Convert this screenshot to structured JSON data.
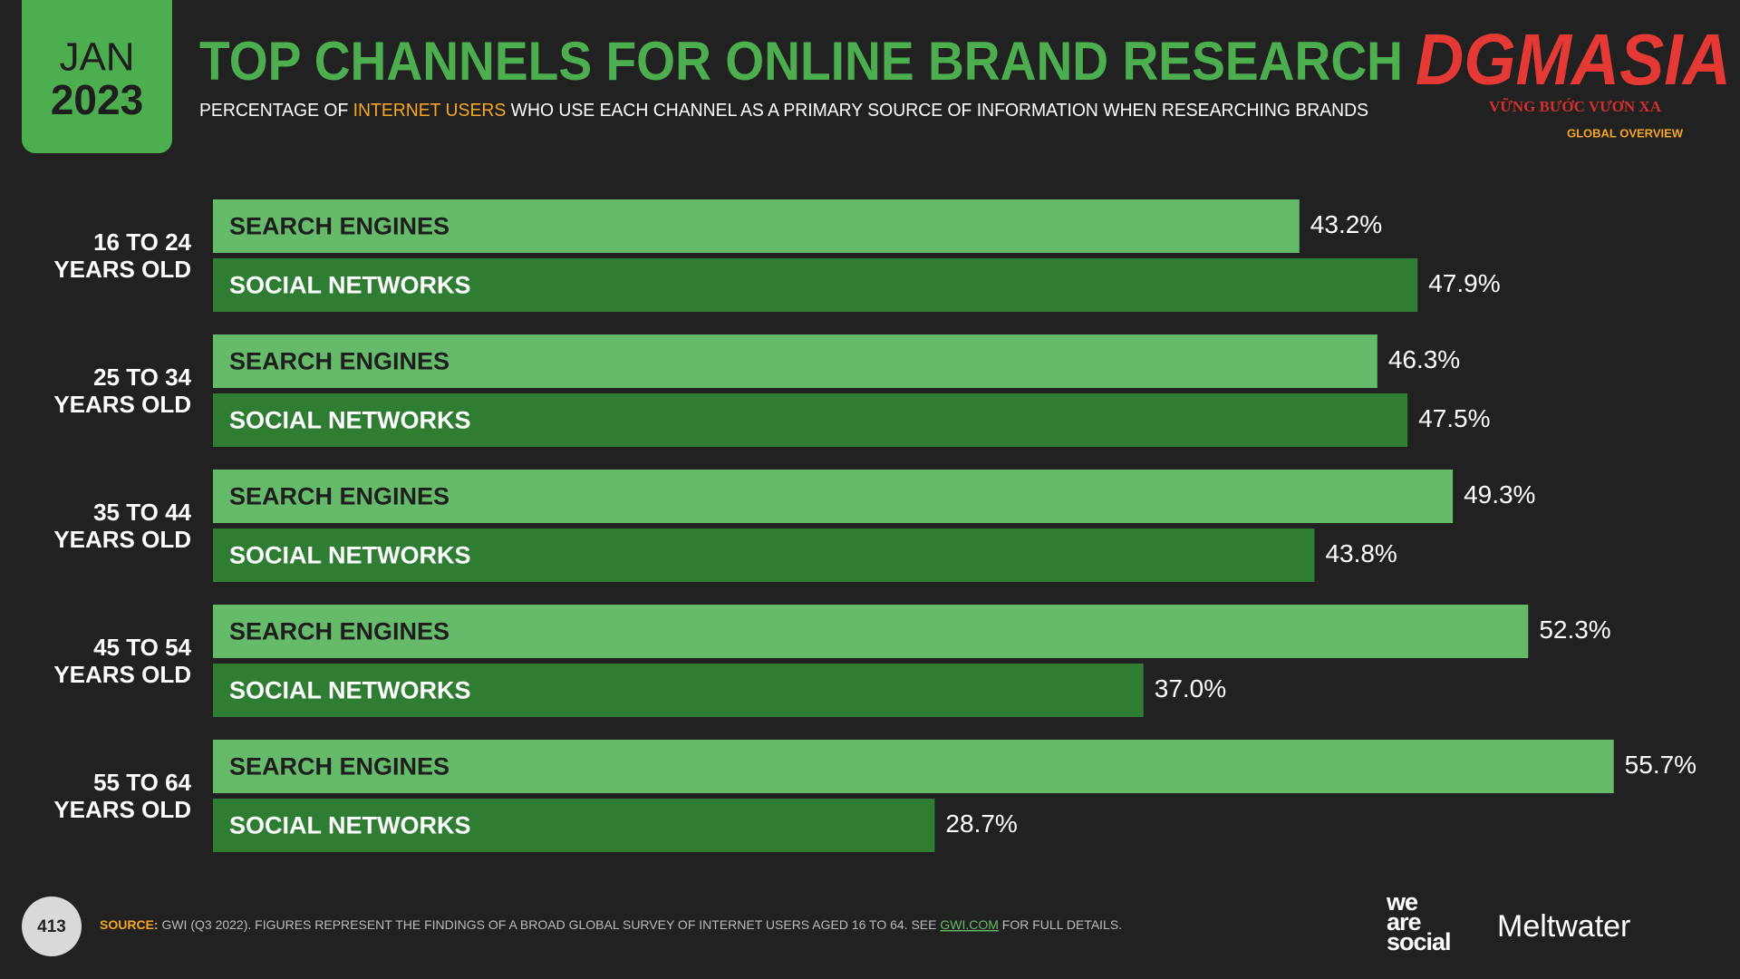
{
  "header": {
    "month": "JAN",
    "year": "2023",
    "section": "GLOBAL OVERVIEW",
    "watermark": "DGMASIA",
    "watermark_tagline": "VỮNG BƯỚC VƯƠN XA"
  },
  "chart_data": {
    "type": "bar",
    "orientation": "horizontal",
    "title": "TOP CHANNELS FOR ONLINE BRAND RESEARCH",
    "subtitle": [
      "PERCENTAGE OF ",
      "INTERNET USERS",
      " WHO USE EACH CHANNEL AS A PRIMARY SOURCE OF INFORMATION WHEN RESEARCHING BRANDS"
    ],
    "categories": [
      "16 TO 24\nYEARS OLD",
      "25 TO 34\nYEARS OLD",
      "35 TO 44\nYEARS OLD",
      "45 TO 54\nYEARS OLD",
      "55 TO 64\nYEARS OLD"
    ],
    "series": [
      {
        "name": "SEARCH ENGINES",
        "color": "#66bb6a",
        "values": [
          43.2,
          46.3,
          49.3,
          52.3,
          55.7
        ],
        "value_labels": [
          "43.2%",
          "46.3%",
          "49.3%",
          "52.3%",
          "55.7%"
        ]
      },
      {
        "name": "SOCIAL NETWORKS",
        "color": "#2e7d32",
        "values": [
          47.9,
          47.5,
          43.8,
          37.0,
          28.7
        ],
        "value_labels": [
          "47.9%",
          "47.5%",
          "43.8%",
          "37.0%",
          "28.7%"
        ]
      }
    ],
    "xlim": [
      0,
      60
    ]
  },
  "footer": {
    "page": "413",
    "source_label": "SOURCE:",
    "source_text": " GWI (Q3 2022). FIGURES REPRESENT THE FINDINGS OF A BROAD GLOBAL SURVEY OF INTERNET USERS AGED 16 TO 64. SEE ",
    "source_link": "GWI.COM",
    "source_end": " FOR FULL DETAILS.",
    "logo_1": "we\nare\nsocial",
    "logo_2": "Meltwater"
  }
}
